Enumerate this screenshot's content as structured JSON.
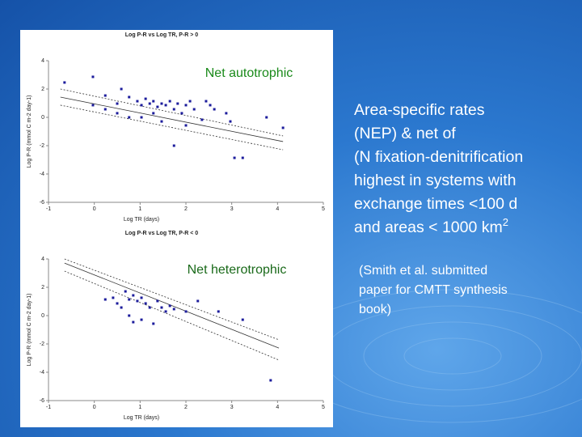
{
  "chart_data": [
    {
      "type": "scatter",
      "title": "Log P-R vs Log TR, P-R > 0",
      "annotation": "Net autotrophic",
      "x_label": "Log TR (days)",
      "y_label": "Log P-R (mmol C m-2 day-1)",
      "xlim": [
        -1,
        5
      ],
      "ylim": [
        -6,
        4
      ],
      "xticks": [
        -1,
        0,
        1,
        2,
        3,
        4,
        5
      ],
      "yticks": [
        -6,
        -4,
        -2,
        0,
        2,
        4
      ],
      "color": "#1c1c9c",
      "x": [
        -0.65,
        -0.03,
        0.24,
        0.5,
        0.59,
        0.76,
        0.94,
        1.03,
        1.12,
        1.21,
        1.29,
        1.38,
        1.47,
        1.56,
        1.65,
        1.74,
        1.82,
        1.91,
        2.0,
        2.09,
        2.18,
        0.5,
        0.76,
        1.03,
        1.29,
        1.47,
        1.74,
        2.0,
        2.44,
        2.53,
        2.62,
        2.88,
        2.97,
        3.06,
        3.24,
        3.76,
        4.12,
        -0.03,
        0.24,
        2.35
      ],
      "values": [
        2.46,
        2.86,
        1.54,
        0.97,
        2.0,
        1.43,
        1.14,
        0.86,
        1.31,
        0.97,
        1.14,
        0.74,
        0.97,
        0.86,
        1.14,
        0.57,
        0.97,
        0.29,
        0.86,
        1.14,
        0.57,
        0.29,
        0,
        0,
        0.29,
        -0.29,
        -2.0,
        -0.57,
        1.14,
        0.86,
        0.57,
        0.29,
        -0.29,
        -2.86,
        -2.86,
        0,
        -0.74,
        0.86,
        0.57,
        -0.17
      ],
      "lines": [
        {
          "x": [
            -0.74,
            4.12
          ],
          "values": [
            1.43,
            -1.71
          ],
          "dash": false
        },
        {
          "x": [
            -0.74,
            4.12
          ],
          "values": [
            2.0,
            -1.31
          ],
          "dash": true
        },
        {
          "x": [
            -0.74,
            4.12
          ],
          "values": [
            0.86,
            -2.29
          ],
          "dash": true
        }
      ]
    },
    {
      "type": "scatter",
      "title": "Log P-R vs Log TR, P-R < 0",
      "annotation": "Net heterotrophic",
      "x_label": "Log TR (days)",
      "y_label": "Log P-R (mmol C m-2 day-1)",
      "xlim": [
        -1,
        5
      ],
      "ylim": [
        -6,
        4
      ],
      "xticks": [
        -1,
        0,
        1,
        2,
        3,
        4,
        5
      ],
      "yticks": [
        -6,
        -4,
        -2,
        0,
        2,
        4
      ],
      "color": "#1c1c9c",
      "x": [
        0.41,
        0.5,
        0.68,
        0.76,
        0.85,
        0.94,
        1.03,
        1.12,
        1.21,
        1.38,
        1.47,
        1.56,
        1.65,
        1.74,
        0.76,
        1.03,
        1.29,
        2.0,
        2.26,
        2.71,
        3.24,
        3.85,
        0.24,
        0.59,
        0.85
      ],
      "values": [
        1.26,
        0.86,
        1.71,
        1.14,
        1.43,
        1.03,
        1.26,
        0.86,
        0.57,
        1.03,
        0.57,
        0.29,
        0.69,
        0.46,
        0,
        -0.29,
        -0.57,
        0.29,
        1.03,
        0.29,
        -0.29,
        -4.57,
        1.14,
        0.57,
        -0.46
      ],
      "lines": [
        {
          "x": [
            -0.65,
            4.03
          ],
          "values": [
            3.71,
            -2.29
          ],
          "dash": false
        },
        {
          "x": [
            -0.65,
            4.03
          ],
          "values": [
            4.0,
            -1.71
          ],
          "dash": true
        },
        {
          "x": [
            -0.65,
            4.03
          ],
          "values": [
            3.14,
            -3.14
          ],
          "dash": true
        }
      ]
    }
  ],
  "slide": {
    "body": [
      "Area-specific rates",
      "(NEP) & net of",
      "(N fixation-denitrification",
      "highest in systems with",
      "exchange times <100 d",
      "and areas < 1000 km"
    ],
    "superscript": "2",
    "citation": [
      "(Smith et al. submitted",
      "paper for CMTT synthesis",
      "book)"
    ]
  }
}
